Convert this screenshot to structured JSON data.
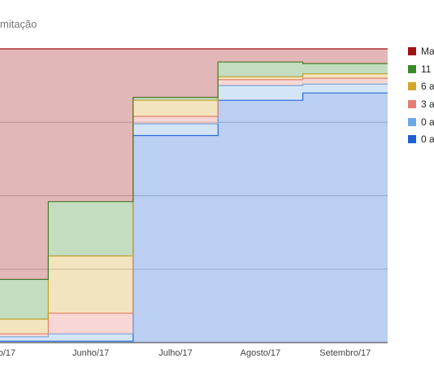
{
  "title": "mitação",
  "chart_data": {
    "type": "area",
    "stacked": true,
    "step": true,
    "percent": true,
    "categories": [
      "io/17",
      "Junho/17",
      "Julho/17",
      "Agosto/17",
      "Setembro/17"
    ],
    "series": [
      {
        "name": "0 a",
        "color": "#1e5fd3",
        "values": [
          0.5,
          0.5,
          70.5,
          82.5,
          85
        ]
      },
      {
        "name": "0 a",
        "color": "#6fa8e8",
        "values": [
          1.5,
          2.5,
          4,
          5,
          3
        ]
      },
      {
        "name": "3 a",
        "color": "#e67c73",
        "values": [
          1,
          7,
          2.5,
          2,
          2
        ]
      },
      {
        "name": "6 a",
        "color": "#d4a62a",
        "values": [
          5,
          19.5,
          5.5,
          1,
          1.5
        ]
      },
      {
        "name": "11",
        "color": "#3b8a2c",
        "values": [
          13.5,
          18.5,
          1,
          5,
          3.5
        ]
      },
      {
        "name": "Ma",
        "color": "#a01212",
        "values": [
          78.5,
          52,
          16.5,
          4.5,
          5
        ]
      }
    ],
    "ylim": [
      0,
      100
    ],
    "grid": true,
    "legend": "right"
  }
}
